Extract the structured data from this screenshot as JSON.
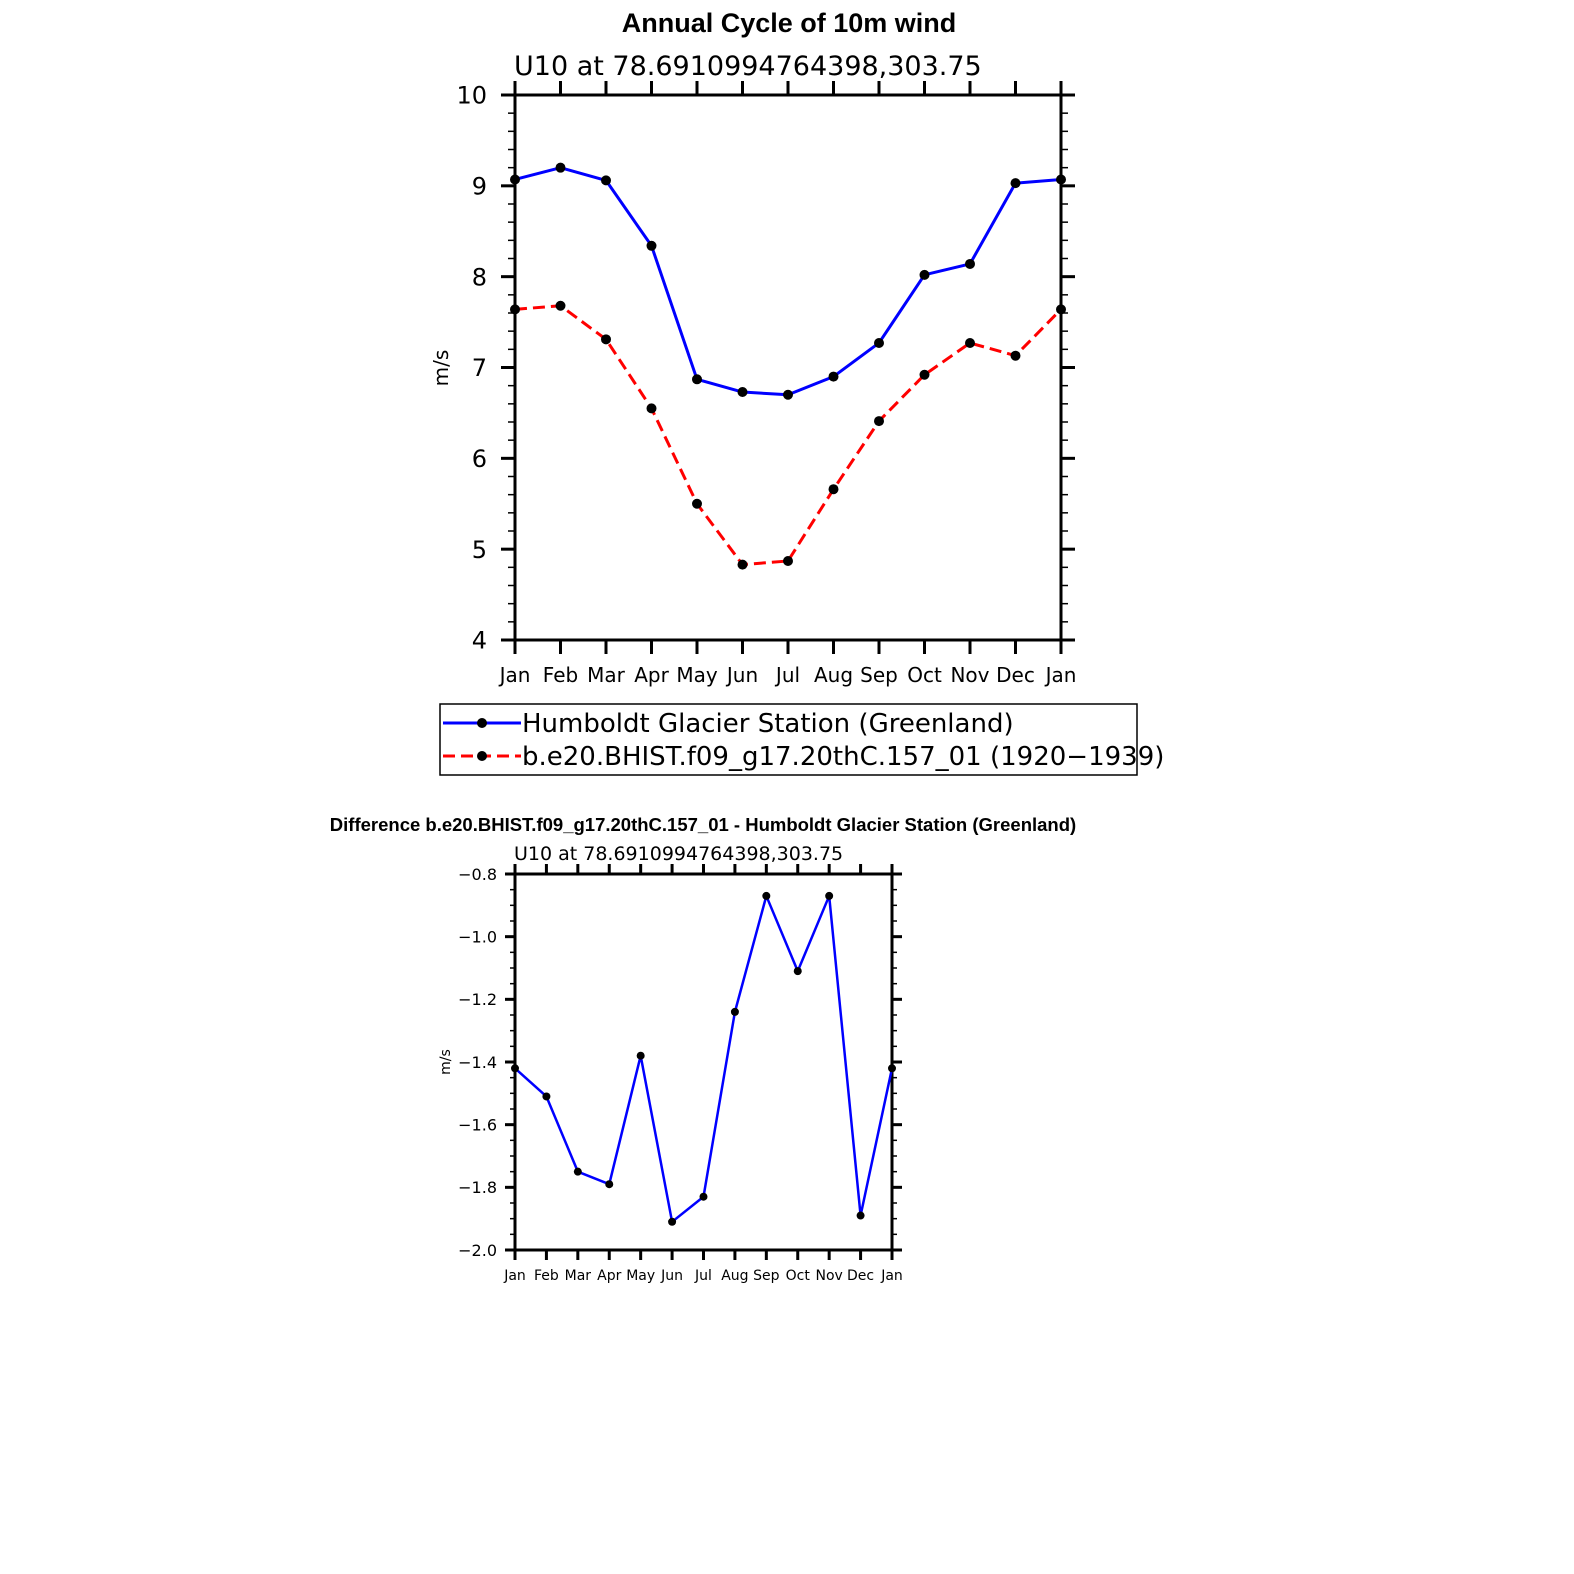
{
  "chart_data": [
    {
      "type": "line",
      "title": "Annual Cycle of 10m wind",
      "subtitle": "U10 at 78.6910994764398,303.75",
      "ylabel": "m/s",
      "xlabel": "",
      "categories": [
        "Jan",
        "Feb",
        "Mar",
        "Apr",
        "May",
        "Jun",
        "Jul",
        "Aug",
        "Sep",
        "Oct",
        "Nov",
        "Dec",
        "Jan"
      ],
      "ylim": [
        4,
        10
      ],
      "yticks": [
        "4",
        "5",
        "6",
        "7",
        "8",
        "9",
        "10"
      ],
      "grid": false,
      "legend_position": "below",
      "series": [
        {
          "name": "Humboldt Glacier Station (Greenland)",
          "color": "#0000ff",
          "dash": "solid",
          "values": [
            9.07,
            9.2,
            9.06,
            8.34,
            6.87,
            6.73,
            6.7,
            6.9,
            7.27,
            8.02,
            8.14,
            9.03,
            9.07
          ]
        },
        {
          "name": "b.e20.BHIST.f09_g17.20thC.157_01 (1920−1939)",
          "color": "#ff0000",
          "dash": "dashed",
          "values": [
            7.64,
            7.68,
            7.31,
            6.55,
            5.5,
            4.83,
            4.87,
            5.66,
            6.41,
            6.92,
            7.27,
            7.13,
            7.64
          ]
        }
      ]
    },
    {
      "type": "line",
      "title": "Difference b.e20.BHIST.f09_g17.20thC.157_01 - Humboldt Glacier Station (Greenland)",
      "subtitle": "U10 at 78.6910994764398,303.75",
      "ylabel": "m/s",
      "xlabel": "",
      "categories": [
        "Jan",
        "Feb",
        "Mar",
        "Apr",
        "May",
        "Jun",
        "Jul",
        "Aug",
        "Sep",
        "Oct",
        "Nov",
        "Dec",
        "Jan"
      ],
      "ylim": [
        -2.0,
        -0.8
      ],
      "yticks": [
        "−2.0",
        "−1.8",
        "−1.6",
        "−1.4",
        "−1.2",
        "−1.0",
        "−0.8"
      ],
      "grid": false,
      "series": [
        {
          "color": "#0000ff",
          "dash": "solid",
          "values": [
            -1.42,
            -1.51,
            -1.75,
            -1.79,
            -1.38,
            -1.91,
            -1.83,
            -1.24,
            -0.87,
            -1.11,
            -0.87,
            -1.89,
            -1.42
          ]
        }
      ]
    }
  ]
}
